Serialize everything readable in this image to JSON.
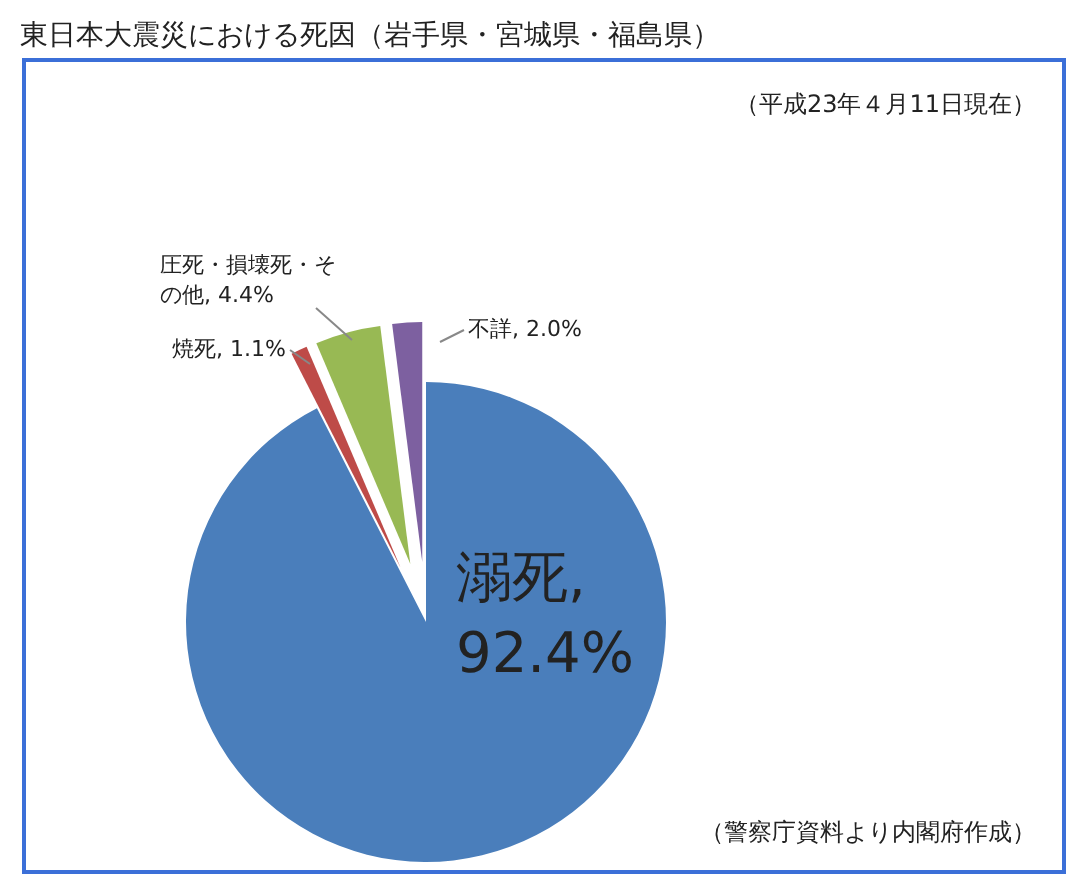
{
  "chart_data": {
    "type": "pie",
    "title": "東日本大震災における死因（岩手県・宮城県・福島県）",
    "categories": [
      "溺死",
      "焼死",
      "圧死・損壊死・その他",
      "不詳"
    ],
    "values": [
      92.4,
      1.1,
      4.4,
      2.0
    ],
    "colors": [
      "#4a7ebb",
      "#be4b48",
      "#98b954",
      "#7d60a0"
    ],
    "value_labels": [
      ", 92.4%",
      ", 1.1%",
      ", 4.4%",
      ", 2.0%"
    ],
    "annotations": [
      "（平成23年４月11日現在）",
      "（警察庁資料より内閣府作成）"
    ]
  }
}
